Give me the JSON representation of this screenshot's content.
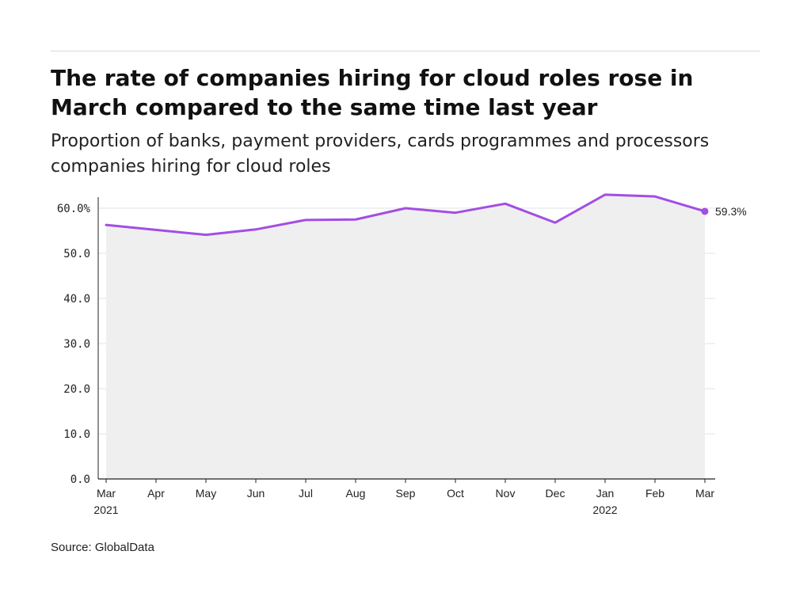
{
  "title": "The rate of companies hiring for cloud roles rose in March compared to the same time last year",
  "subtitle": "Proportion of banks, payment providers, cards programmes and processors companies hiring for cloud roles",
  "source": "Source: GlobalData",
  "colors": {
    "line": "#a24ee3",
    "area": "#efefef",
    "grid": "#e3e3e3",
    "axis": "#222222"
  },
  "chart_data": {
    "type": "area",
    "categories": [
      "Mar",
      "Apr",
      "May",
      "Jun",
      "Jul",
      "Aug",
      "Sep",
      "Oct",
      "Nov",
      "Dec",
      "Jan",
      "Feb",
      "Mar"
    ],
    "year_labels": [
      "2021",
      "",
      "",
      "",
      "",
      "",
      "",
      "",
      "",
      "",
      "2022",
      "",
      ""
    ],
    "series": [
      {
        "values": [
          56.3,
          55.2,
          54.1,
          55.3,
          57.4,
          57.5,
          60.0,
          59.0,
          61.0,
          56.8,
          63.0,
          62.6,
          59.3
        ]
      }
    ],
    "yticks": [
      0,
      10,
      20,
      30,
      40,
      50,
      60
    ],
    "ytick_labels": [
      "0.0",
      "10.0",
      "20.0",
      "30.0",
      "40.0",
      "50.0",
      "60.0%"
    ],
    "ylim": [
      0,
      60
    ],
    "end_label": "59.3%",
    "grid": true,
    "xlabel": "",
    "ylabel": ""
  }
}
